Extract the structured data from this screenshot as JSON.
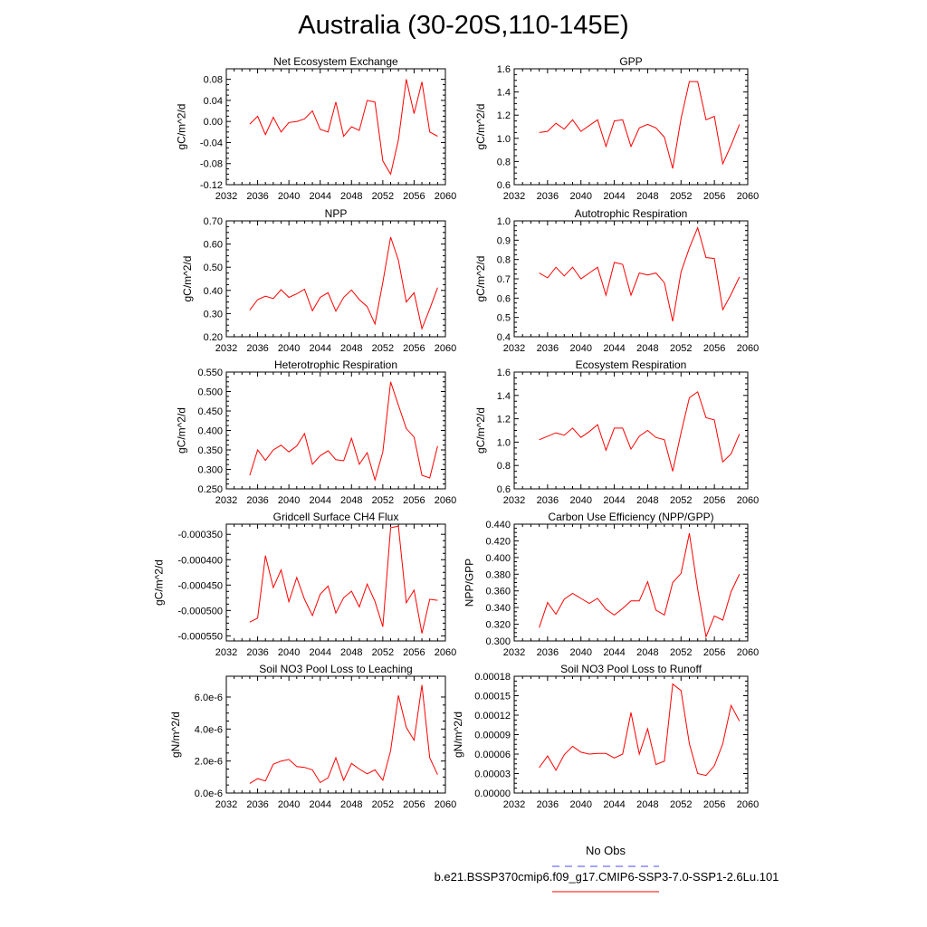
{
  "title": "Australia (30-20S,110-145E)",
  "legend": {
    "obs_label": "No Obs",
    "obs_color": "#4a4aff",
    "case_label": "b.e21.BSSP370cmip6.f09_g17.CMIP6-SSP3-7.0-SSP1-2.6Lu.101",
    "case_color": "#ff0000"
  },
  "chart_data": [
    {
      "type": "line",
      "title": "Net Ecosystem Exchange",
      "ylabel": "gC/m^2/d",
      "xlim": [
        2032,
        2060
      ],
      "xticks": [
        "2032",
        "2036",
        "2040",
        "2044",
        "2048",
        "2052",
        "2056",
        "2060"
      ],
      "ylim": [
        -0.12,
        0.1
      ],
      "yticks": [
        "-0.12",
        "-0.08",
        "-0.04",
        "0.00",
        "0.04",
        "0.08"
      ],
      "series": [
        {
          "x": [
            2035,
            2036,
            2037,
            2038,
            2039,
            2040,
            2041,
            2042,
            2043,
            2044,
            2045,
            2046,
            2047,
            2048,
            2049,
            2050,
            2051,
            2052,
            2053,
            2054,
            2055,
            2056,
            2057,
            2058,
            2059
          ],
          "values": [
            -0.005,
            0.01,
            -0.025,
            0.008,
            -0.02,
            -0.002,
            0.0,
            0.005,
            0.02,
            -0.015,
            -0.02,
            0.037,
            -0.028,
            -0.01,
            -0.017,
            0.04,
            0.037,
            -0.075,
            -0.1,
            -0.035,
            0.08,
            0.015,
            0.075,
            -0.02,
            -0.028
          ]
        }
      ]
    },
    {
      "type": "line",
      "title": "GPP",
      "ylabel": "gC/m^2/d",
      "xlim": [
        2032,
        2060
      ],
      "xticks": [
        "2032",
        "2036",
        "2040",
        "2044",
        "2048",
        "2052",
        "2056",
        "2060"
      ],
      "ylim": [
        0.6,
        1.6
      ],
      "yticks": [
        "0.6",
        "0.8",
        "1.0",
        "1.2",
        "1.4",
        "1.6"
      ],
      "series": [
        {
          "x": [
            2035,
            2036,
            2037,
            2038,
            2039,
            2040,
            2041,
            2042,
            2043,
            2044,
            2045,
            2046,
            2047,
            2048,
            2049,
            2050,
            2051,
            2052,
            2053,
            2054,
            2055,
            2056,
            2057,
            2058,
            2059
          ],
          "values": [
            1.05,
            1.06,
            1.13,
            1.08,
            1.16,
            1.06,
            1.11,
            1.16,
            0.93,
            1.15,
            1.16,
            0.93,
            1.09,
            1.12,
            1.09,
            1.01,
            0.74,
            1.17,
            1.49,
            1.49,
            1.16,
            1.19,
            0.78,
            0.94,
            1.12
          ]
        }
      ]
    },
    {
      "type": "line",
      "title": "NPP",
      "ylabel": "gC/m^2/d",
      "xlim": [
        2032,
        2060
      ],
      "xticks": [
        "2032",
        "2036",
        "2040",
        "2044",
        "2048",
        "2052",
        "2056",
        "2060"
      ],
      "ylim": [
        0.2,
        0.7
      ],
      "yticks": [
        "0.20",
        "0.30",
        "0.40",
        "0.50",
        "0.60",
        "0.70"
      ],
      "series": [
        {
          "x": [
            2035,
            2036,
            2037,
            2038,
            2039,
            2040,
            2041,
            2042,
            2043,
            2044,
            2045,
            2046,
            2047,
            2048,
            2049,
            2050,
            2051,
            2052,
            2053,
            2054,
            2055,
            2056,
            2057,
            2058,
            2059
          ],
          "values": [
            0.315,
            0.36,
            0.375,
            0.365,
            0.403,
            0.37,
            0.385,
            0.405,
            0.312,
            0.37,
            0.39,
            0.31,
            0.37,
            0.402,
            0.36,
            0.33,
            0.255,
            0.435,
            0.63,
            0.53,
            0.35,
            0.39,
            0.235,
            0.32,
            0.412
          ]
        }
      ]
    },
    {
      "type": "line",
      "title": "Autotrophic Respiration",
      "ylabel": "gC/m^2/d",
      "xlim": [
        2032,
        2060
      ],
      "xticks": [
        "2032",
        "2036",
        "2040",
        "2044",
        "2048",
        "2052",
        "2056",
        "2060"
      ],
      "ylim": [
        0.4,
        1.0
      ],
      "yticks": [
        "0.4",
        "0.5",
        "0.6",
        "0.7",
        "0.8",
        "0.9",
        "1.0"
      ],
      "series": [
        {
          "x": [
            2035,
            2036,
            2037,
            2038,
            2039,
            2040,
            2041,
            2042,
            2043,
            2044,
            2045,
            2046,
            2047,
            2048,
            2049,
            2050,
            2051,
            2052,
            2053,
            2054,
            2055,
            2056,
            2057,
            2058,
            2059
          ],
          "values": [
            0.73,
            0.705,
            0.76,
            0.715,
            0.76,
            0.7,
            0.73,
            0.76,
            0.615,
            0.785,
            0.775,
            0.615,
            0.73,
            0.72,
            0.73,
            0.68,
            0.48,
            0.735,
            0.86,
            0.965,
            0.81,
            0.805,
            0.54,
            0.62,
            0.71
          ]
        }
      ]
    },
    {
      "type": "line",
      "title": "Heterotrophic Respiration",
      "ylabel": "gC/m^2/d",
      "xlim": [
        2032,
        2060
      ],
      "xticks": [
        "2032",
        "2036",
        "2040",
        "2044",
        "2048",
        "2052",
        "2056",
        "2060"
      ],
      "ylim": [
        0.25,
        0.55
      ],
      "yticks": [
        "0.250",
        "0.300",
        "0.350",
        "0.400",
        "0.450",
        "0.500",
        "0.550"
      ],
      "series": [
        {
          "x": [
            2035,
            2036,
            2037,
            2038,
            2039,
            2040,
            2041,
            2042,
            2043,
            2044,
            2045,
            2046,
            2047,
            2048,
            2049,
            2050,
            2051,
            2052,
            2053,
            2054,
            2055,
            2056,
            2057,
            2058,
            2059
          ],
          "values": [
            0.285,
            0.35,
            0.323,
            0.35,
            0.362,
            0.345,
            0.36,
            0.392,
            0.313,
            0.335,
            0.348,
            0.325,
            0.322,
            0.38,
            0.313,
            0.343,
            0.273,
            0.345,
            0.525,
            0.465,
            0.405,
            0.383,
            0.285,
            0.278,
            0.36
          ]
        }
      ]
    },
    {
      "type": "line",
      "title": "Ecosystem Respiration",
      "ylabel": "gC/m^2/d",
      "xlim": [
        2032,
        2060
      ],
      "xticks": [
        "2032",
        "2036",
        "2040",
        "2044",
        "2048",
        "2052",
        "2056",
        "2060"
      ],
      "ylim": [
        0.6,
        1.6
      ],
      "yticks": [
        "0.6",
        "0.8",
        "1.0",
        "1.2",
        "1.4",
        "1.6"
      ],
      "series": [
        {
          "x": [
            2035,
            2036,
            2037,
            2038,
            2039,
            2040,
            2041,
            2042,
            2043,
            2044,
            2045,
            2046,
            2047,
            2048,
            2049,
            2050,
            2051,
            2052,
            2053,
            2054,
            2055,
            2056,
            2057,
            2058,
            2059
          ],
          "values": [
            1.02,
            1.05,
            1.08,
            1.06,
            1.12,
            1.04,
            1.09,
            1.15,
            0.93,
            1.12,
            1.12,
            0.94,
            1.05,
            1.1,
            1.04,
            1.02,
            0.75,
            1.08,
            1.38,
            1.43,
            1.21,
            1.19,
            0.83,
            0.9,
            1.07
          ]
        }
      ]
    },
    {
      "type": "line",
      "title": "Gridcell Surface CH4 Flux",
      "ylabel": "gC/m^2/d",
      "xlim": [
        2032,
        2060
      ],
      "xticks": [
        "2032",
        "2036",
        "2040",
        "2044",
        "2048",
        "2052",
        "2056",
        "2060"
      ],
      "ylim": [
        -0.00056,
        -0.00033
      ],
      "yticks": [
        "-0.000550",
        "-0.000500",
        "-0.000450",
        "-0.000400",
        "-0.000350"
      ],
      "series": [
        {
          "x": [
            2035,
            2036,
            2037,
            2038,
            2039,
            2040,
            2041,
            2042,
            2043,
            2044,
            2045,
            2046,
            2047,
            2048,
            2049,
            2050,
            2051,
            2052,
            2053,
            2054,
            2055,
            2056,
            2057,
            2058,
            2059
          ],
          "values": [
            -0.000523,
            -0.000515,
            -0.000392,
            -0.000455,
            -0.00042,
            -0.000483,
            -0.000435,
            -0.000478,
            -0.00051,
            -0.000468,
            -0.000452,
            -0.000505,
            -0.000475,
            -0.000462,
            -0.000493,
            -0.000448,
            -0.000482,
            -0.000532,
            -0.000337,
            -0.000334,
            -0.000485,
            -0.00046,
            -0.000545,
            -0.000478,
            -0.00048
          ]
        }
      ]
    },
    {
      "type": "line",
      "title": "Carbon Use Efficiency (NPP/GPP)",
      "ylabel": "NPP/GPP",
      "xlim": [
        2032,
        2060
      ],
      "xticks": [
        "2032",
        "2036",
        "2040",
        "2044",
        "2048",
        "2052",
        "2056",
        "2060"
      ],
      "ylim": [
        0.3,
        0.44
      ],
      "yticks": [
        "0.300",
        "0.320",
        "0.340",
        "0.360",
        "0.380",
        "0.400",
        "0.420",
        "0.440"
      ],
      "series": [
        {
          "x": [
            2035,
            2036,
            2037,
            2038,
            2039,
            2040,
            2041,
            2042,
            2043,
            2044,
            2045,
            2046,
            2047,
            2048,
            2049,
            2050,
            2051,
            2052,
            2053,
            2054,
            2055,
            2056,
            2057,
            2058,
            2059
          ],
          "values": [
            0.316,
            0.346,
            0.332,
            0.35,
            0.357,
            0.351,
            0.345,
            0.351,
            0.338,
            0.331,
            0.339,
            0.348,
            0.348,
            0.371,
            0.337,
            0.331,
            0.37,
            0.381,
            0.429,
            0.362,
            0.305,
            0.33,
            0.325,
            0.359,
            0.38
          ]
        }
      ]
    },
    {
      "type": "line",
      "title": "Soil NO3 Pool Loss to Leaching",
      "ylabel": "gN/m^2/d",
      "xlim": [
        2032,
        2060
      ],
      "xticks": [
        "2032",
        "2036",
        "2040",
        "2044",
        "2048",
        "2052",
        "2056",
        "2060"
      ],
      "ylim": [
        0,
        7.3e-06
      ],
      "yticks": [
        "0.0e-6",
        "2.0e-6",
        "4.0e-6",
        "6.0e-6"
      ],
      "ytick_values": [
        0,
        2e-06,
        4e-06,
        6e-06
      ],
      "series": [
        {
          "x": [
            2035,
            2036,
            2037,
            2038,
            2039,
            2040,
            2041,
            2042,
            2043,
            2044,
            2045,
            2046,
            2047,
            2048,
            2049,
            2050,
            2051,
            2052,
            2053,
            2054,
            2055,
            2056,
            2057,
            2058,
            2059
          ],
          "values": [
            6e-07,
            9e-07,
            7.5e-07,
            1.8e-06,
            2e-06,
            2.1e-06,
            1.65e-06,
            1.6e-06,
            1.45e-06,
            6.5e-07,
            9.5e-07,
            2.2e-06,
            8e-07,
            1.85e-06,
            1.5e-06,
            1.2e-06,
            1.45e-06,
            8e-07,
            2.65e-06,
            6.1e-06,
            4.1e-06,
            3.3e-06,
            6.75e-06,
            2.2e-06,
            1.15e-06
          ]
        }
      ]
    },
    {
      "type": "line",
      "title": "Soil NO3 Pool Loss to Runoff",
      "ylabel": "gN/m^2/d",
      "xlim": [
        2032,
        2060
      ],
      "xticks": [
        "2032",
        "2036",
        "2040",
        "2044",
        "2048",
        "2052",
        "2056",
        "2060"
      ],
      "ylim": [
        0,
        0.00018
      ],
      "yticks": [
        "0.00000",
        "0.00003",
        "0.00006",
        "0.00009",
        "0.00012",
        "0.00015",
        "0.00018"
      ],
      "series": [
        {
          "x": [
            2035,
            2036,
            2037,
            2038,
            2039,
            2040,
            2041,
            2042,
            2043,
            2044,
            2045,
            2046,
            2047,
            2048,
            2049,
            2050,
            2051,
            2052,
            2053,
            2054,
            2055,
            2056,
            2057,
            2058,
            2059
          ],
          "values": [
            3.9e-05,
            5.7e-05,
            3.5e-05,
            5.9e-05,
            7.2e-05,
            6.3e-05,
            6e-05,
            6.1e-05,
            6.1e-05,
            5.4e-05,
            6e-05,
            0.000124,
            6e-05,
            9.9e-05,
            4.4e-05,
            4.9e-05,
            0.000168,
            0.000158,
            7.6e-05,
            3e-05,
            2.7e-05,
            4.2e-05,
            7.6e-05,
            0.000135,
            0.000111
          ]
        }
      ]
    }
  ]
}
